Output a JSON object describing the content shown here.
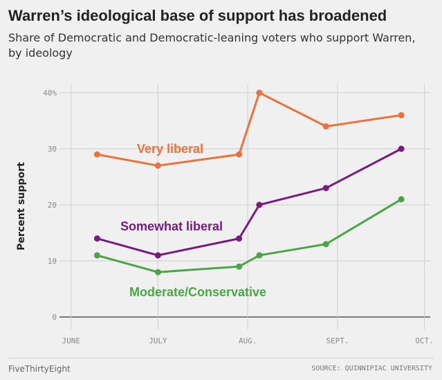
{
  "chart_data": {
    "type": "line",
    "title": "Warren’s ideological base of support has broadened",
    "subtitle": "Share of Democratic and Democratic-leaning voters who support Warren, by ideology",
    "ylabel": "Percent support",
    "ylim": [
      0,
      42
    ],
    "y_ticks": [
      {
        "value": 0,
        "label": "0"
      },
      {
        "value": 10,
        "label": "10"
      },
      {
        "value": 20,
        "label": "20"
      },
      {
        "value": 30,
        "label": "30"
      },
      {
        "value": 40,
        "label": "40%"
      }
    ],
    "x_ticks": [
      {
        "date": "2019-06-01",
        "label": "JUNE"
      },
      {
        "date": "2019-07-01",
        "label": "JULY"
      },
      {
        "date": "2019-08-01",
        "label": "AUG."
      },
      {
        "date": "2019-09-01",
        "label": "SEPT."
      },
      {
        "date": "2019-10-01",
        "label": "OCT."
      }
    ],
    "xlim": [
      "2019-05-28",
      "2019-10-03"
    ],
    "grid": true,
    "series": [
      {
        "name": "Very liberal",
        "color": "#ed713a",
        "points": [
          {
            "date": "2019-06-10",
            "value": 29
          },
          {
            "date": "2019-07-01",
            "value": 27
          },
          {
            "date": "2019-07-29",
            "value": 29
          },
          {
            "date": "2019-08-05",
            "value": 40
          },
          {
            "date": "2019-08-28",
            "value": 34
          },
          {
            "date": "2019-09-23",
            "value": 36
          }
        ]
      },
      {
        "name": "Somewhat liberal",
        "color": "#7a1a80",
        "points": [
          {
            "date": "2019-06-10",
            "value": 14
          },
          {
            "date": "2019-07-01",
            "value": 11
          },
          {
            "date": "2019-07-29",
            "value": 14
          },
          {
            "date": "2019-08-05",
            "value": 20
          },
          {
            "date": "2019-08-28",
            "value": 23
          },
          {
            "date": "2019-09-23",
            "value": 30
          }
        ]
      },
      {
        "name": "Moderate/Conservative",
        "color": "#4aa545",
        "points": [
          {
            "date": "2019-06-10",
            "value": 11
          },
          {
            "date": "2019-07-01",
            "value": 8
          },
          {
            "date": "2019-07-29",
            "value": 9
          },
          {
            "date": "2019-08-05",
            "value": 11
          },
          {
            "date": "2019-08-28",
            "value": 13
          },
          {
            "date": "2019-09-23",
            "value": 21
          }
        ]
      }
    ]
  },
  "footer": {
    "credit": "FiveThirtyEight",
    "source": "SOURCE: QUINNIPIAC UNIVERSITY"
  }
}
